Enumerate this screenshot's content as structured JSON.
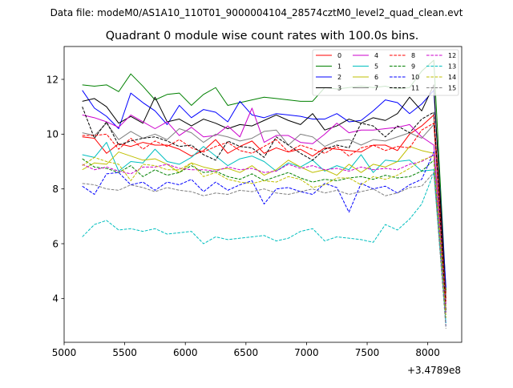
{
  "suptitle": "Data file: modeM0/AS1A10_110T01_9000004104_28574cztM0_level2_quad_clean.evt",
  "chart_data": {
    "type": "line",
    "title": "Quadrant 0 module wise count rates with 100.0s bins.",
    "xlabel": "",
    "ylabel": "",
    "x_offset_label": "+3.4789e8",
    "xlim": [
      5000,
      8280
    ],
    "ylim": [
      2.4,
      13.2
    ],
    "x_ticks": [
      5000,
      5500,
      6000,
      6500,
      7000,
      7500,
      8000
    ],
    "x_tick_labels": [
      "5000",
      "5500",
      "6000",
      "6500",
      "7000",
      "7500",
      "8000"
    ],
    "y_ticks": [
      4,
      6,
      8,
      10,
      12
    ],
    "y_tick_labels": [
      "4",
      "6",
      "8",
      "10",
      "12"
    ],
    "grid": false,
    "legend_placement": "top-right",
    "x": [
      5150,
      5250,
      5350,
      5450,
      5550,
      5650,
      5750,
      5850,
      5950,
      6050,
      6150,
      6250,
      6350,
      6450,
      6550,
      6650,
      6750,
      6850,
      6950,
      7050,
      7150,
      7250,
      7350,
      7450,
      7550,
      7650,
      7750,
      7850,
      7950,
      8050,
      8150
    ],
    "series": [
      {
        "name": "0",
        "color": "#ff0000",
        "dash": "solid",
        "values": [
          9.9,
          9.85,
          9.3,
          9.65,
          9.55,
          9.7,
          9.6,
          9.6,
          9.45,
          9.2,
          9.4,
          9.8,
          9.3,
          9.55,
          9.75,
          9.3,
          9.5,
          9.35,
          9.45,
          9.2,
          9.5,
          9.45,
          9.4,
          9.35,
          9.6,
          9.6,
          9.4,
          10.0,
          10.3,
          10.7,
          4.2
        ]
      },
      {
        "name": "1",
        "color": "#008000",
        "dash": "solid",
        "values": [
          11.8,
          11.75,
          11.8,
          11.55,
          12.2,
          11.75,
          11.25,
          11.45,
          11.5,
          11.05,
          11.45,
          11.7,
          11.05,
          11.15,
          11.25,
          11.35,
          11.3,
          11.25,
          11.2,
          11.2,
          11.7,
          11.65,
          11.7,
          11.75,
          11.7,
          11.75,
          11.65,
          11.7,
          12.3,
          12.7,
          4.3
        ]
      },
      {
        "name": "2",
        "color": "#0000ff",
        "dash": "solid",
        "values": [
          11.6,
          10.95,
          10.65,
          10.2,
          11.5,
          11.15,
          10.85,
          10.35,
          11.05,
          10.6,
          10.9,
          10.8,
          10.45,
          11.2,
          10.7,
          10.6,
          10.75,
          10.7,
          10.65,
          10.55,
          10.55,
          10.75,
          10.45,
          10.5,
          10.85,
          11.25,
          11.15,
          10.75,
          11.1,
          11.6,
          4.4
        ]
      },
      {
        "name": "3",
        "color": "#000000",
        "dash": "solid",
        "values": [
          11.2,
          11.3,
          11.0,
          10.4,
          10.65,
          10.4,
          11.35,
          10.45,
          10.55,
          10.3,
          10.55,
          10.4,
          10.2,
          10.35,
          10.3,
          10.5,
          10.7,
          10.5,
          10.35,
          10.75,
          10.15,
          10.3,
          10.55,
          10.4,
          10.6,
          10.5,
          10.75,
          11.35,
          10.85,
          11.8,
          4.0
        ]
      },
      {
        "name": "4",
        "color": "#cc00cc",
        "dash": "solid",
        "values": [
          10.7,
          10.6,
          10.45,
          10.25,
          10.7,
          10.45,
          10.2,
          10.45,
          9.95,
          10.25,
          9.9,
          9.95,
          10.3,
          9.9,
          10.95,
          9.7,
          9.95,
          9.95,
          9.7,
          9.65,
          10.0,
          10.4,
          10.05,
          10.15,
          10.15,
          10.2,
          10.25,
          10.35,
          9.9,
          9.6,
          3.8
        ]
      },
      {
        "name": "5",
        "color": "#00bfbf",
        "dash": "solid",
        "values": [
          9.25,
          9.15,
          9.7,
          8.65,
          9.0,
          8.95,
          9.45,
          9.0,
          8.9,
          9.15,
          9.55,
          9.2,
          8.85,
          9.1,
          9.2,
          9.0,
          8.65,
          8.95,
          8.8,
          9.05,
          8.65,
          8.85,
          8.7,
          9.25,
          8.6,
          9.05,
          9.0,
          9.05,
          8.65,
          8.7,
          3.5
        ]
      },
      {
        "name": "6",
        "color": "#bfbf00",
        "dash": "solid",
        "values": [
          8.7,
          8.95,
          8.9,
          9.35,
          9.2,
          9.05,
          9.1,
          8.9,
          8.6,
          8.95,
          8.8,
          8.7,
          8.75,
          8.6,
          8.85,
          8.5,
          8.7,
          9.05,
          8.8,
          8.6,
          8.7,
          8.5,
          8.9,
          8.6,
          8.9,
          8.8,
          9.0,
          9.55,
          9.4,
          9.3,
          3.6
        ]
      },
      {
        "name": "7",
        "color": "#808080",
        "dash": "solid",
        "values": [
          10.05,
          9.95,
          10.4,
          9.8,
          10.1,
          9.85,
          10.0,
          9.8,
          10.2,
          10.05,
          9.7,
          10.0,
          9.9,
          9.75,
          9.85,
          10.1,
          10.15,
          9.6,
          10.0,
          9.9,
          9.55,
          9.75,
          9.8,
          9.6,
          9.8,
          9.75,
          9.9,
          10.05,
          9.85,
          10.35,
          3.9
        ]
      },
      {
        "name": "8",
        "color": "#ff0000",
        "dash": "dashed",
        "values": [
          9.95,
          9.95,
          10.0,
          9.45,
          9.85,
          9.45,
          9.75,
          9.55,
          9.8,
          9.5,
          9.35,
          9.55,
          9.7,
          9.4,
          9.3,
          9.55,
          9.8,
          9.35,
          9.6,
          9.45,
          9.3,
          9.55,
          9.2,
          9.5,
          9.6,
          9.4,
          9.55,
          9.5,
          10.15,
          10.4,
          3.9
        ]
      },
      {
        "name": "9",
        "color": "#008000",
        "dash": "dashed",
        "values": [
          9.1,
          8.8,
          8.75,
          8.6,
          8.85,
          8.45,
          8.7,
          8.5,
          8.6,
          8.85,
          8.6,
          8.65,
          8.45,
          8.35,
          8.55,
          8.3,
          8.45,
          8.6,
          8.4,
          8.25,
          8.35,
          8.3,
          8.4,
          8.45,
          8.35,
          8.5,
          8.4,
          8.45,
          8.65,
          9.05,
          3.3
        ]
      },
      {
        "name": "10",
        "color": "#0000ff",
        "dash": "dashed",
        "values": [
          8.1,
          7.8,
          8.55,
          8.6,
          8.15,
          8.25,
          7.95,
          8.25,
          8.15,
          8.35,
          7.9,
          8.25,
          7.95,
          8.15,
          8.3,
          7.45,
          8.0,
          8.05,
          7.9,
          7.8,
          8.2,
          8.05,
          7.15,
          8.2,
          8.0,
          8.1,
          7.85,
          8.15,
          8.35,
          9.35,
          3.0
        ]
      },
      {
        "name": "11",
        "color": "#000000",
        "dash": "dashed",
        "values": [
          11.0,
          9.85,
          10.45,
          9.6,
          9.75,
          9.85,
          9.9,
          9.75,
          9.55,
          9.6,
          9.25,
          9.05,
          9.75,
          9.55,
          9.5,
          9.15,
          9.9,
          9.6,
          9.3,
          9.05,
          9.45,
          9.6,
          9.5,
          10.4,
          10.3,
          9.9,
          10.3,
          10.05,
          10.55,
          10.8,
          3.5
        ]
      },
      {
        "name": "12",
        "color": "#cc00cc",
        "dash": "dashed",
        "values": [
          8.9,
          8.7,
          8.8,
          8.65,
          8.55,
          8.8,
          8.8,
          8.9,
          8.75,
          8.7,
          8.7,
          8.65,
          8.8,
          8.7,
          8.75,
          8.6,
          8.65,
          8.9,
          8.75,
          8.85,
          8.7,
          8.75,
          8.65,
          8.8,
          8.7,
          8.75,
          8.7,
          8.9,
          9.0,
          9.25,
          3.4
        ]
      },
      {
        "name": "13",
        "color": "#00bfbf",
        "dash": "dashed",
        "values": [
          6.25,
          6.7,
          6.85,
          6.5,
          6.55,
          6.45,
          6.55,
          6.35,
          6.4,
          6.45,
          6.0,
          6.25,
          6.15,
          6.2,
          6.25,
          6.3,
          6.1,
          6.2,
          6.45,
          6.55,
          6.1,
          6.25,
          6.2,
          6.15,
          6.05,
          6.7,
          6.5,
          6.9,
          7.45,
          8.6,
          3.1
        ]
      },
      {
        "name": "14",
        "color": "#bfbf00",
        "dash": "dashed",
        "values": [
          8.85,
          9.15,
          9.0,
          8.9,
          8.3,
          8.9,
          8.85,
          8.7,
          8.7,
          8.95,
          8.45,
          8.6,
          8.35,
          8.25,
          8.2,
          8.3,
          8.25,
          8.45,
          8.35,
          8.05,
          8.15,
          8.4,
          8.4,
          8.15,
          8.45,
          8.35,
          8.5,
          8.75,
          9.05,
          9.2,
          3.3
        ]
      },
      {
        "name": "15",
        "color": "#808080",
        "dash": "dashed",
        "values": [
          8.2,
          8.15,
          8.0,
          7.95,
          8.15,
          8.05,
          7.9,
          8.05,
          7.95,
          7.9,
          7.75,
          7.85,
          7.8,
          7.95,
          7.9,
          8.0,
          7.85,
          7.8,
          7.9,
          8.0,
          7.85,
          7.95,
          7.8,
          7.9,
          8.0,
          7.75,
          7.85,
          8.05,
          8.1,
          8.6,
          2.9
        ]
      }
    ]
  }
}
